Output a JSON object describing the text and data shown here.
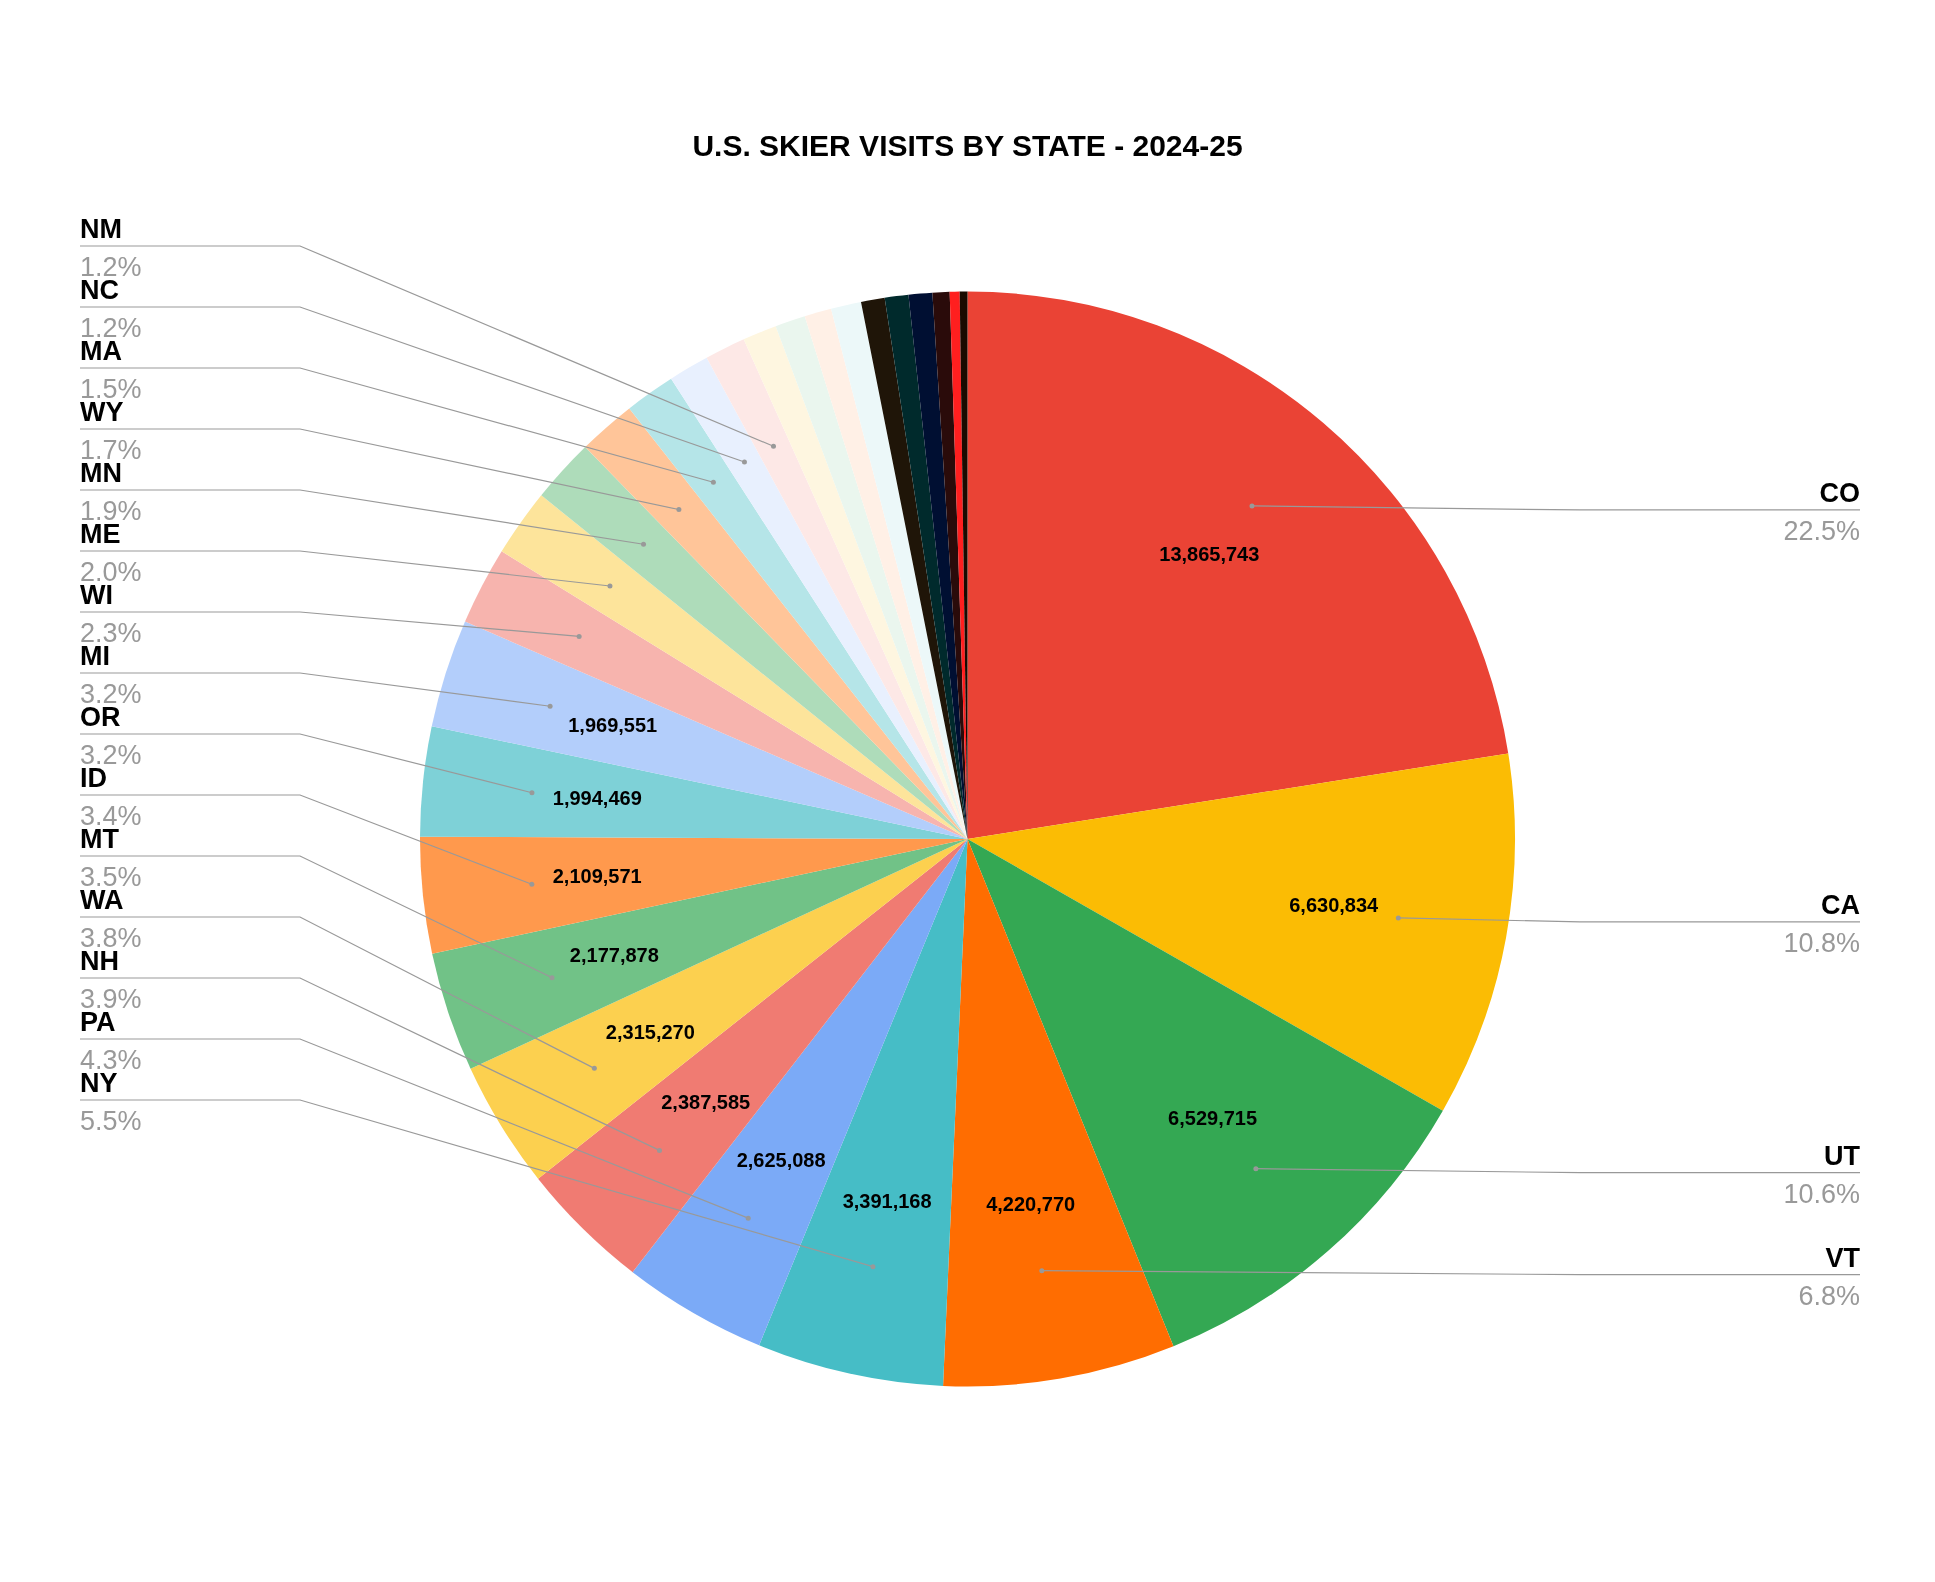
{
  "chart_data": {
    "type": "pie",
    "title": "U.S. SKIER VISITS BY STATE - 2024-25",
    "categories": [
      "CO",
      "CA",
      "UT",
      "VT",
      "NY",
      "PA",
      "NH",
      "WA",
      "MT",
      "ID",
      "OR",
      "MI",
      "WI",
      "ME",
      "MN",
      "WY",
      "MA",
      "NC",
      "NM",
      null,
      null,
      null,
      null,
      null,
      null,
      null,
      null,
      null,
      null
    ],
    "values": [
      13865743,
      6630834,
      6529715,
      4220770,
      3391168,
      2625088,
      2387585,
      2315270,
      2177878,
      2109571,
      1994469,
      1969551,
      1420000,
      1230000,
      1170000,
      1050000,
      920000,
      740000,
      740000,
      620000,
      550000,
      490000,
      550000,
      430000,
      430000,
      430000,
      310000,
      180000,
      140000
    ],
    "colors": [
      "#ea4335",
      "#fbbc04",
      "#34a853",
      "#ff6d01",
      "#46bdc6",
      "#7baaf7",
      "#f07b72",
      "#fcd04f",
      "#71c287",
      "#ff994d",
      "#7ed1d7",
      "#b3cefb",
      "#f7b4ae",
      "#fde49b",
      "#aedcba",
      "#ffc599",
      "#b5e5e8",
      "#e8f0fe",
      "#fde8e6",
      "#fef6e0",
      "#eaf6ee",
      "#fff0e6",
      "#ecf8f9",
      "#1f1508",
      "#002a2c",
      "#000f32",
      "#2a0b0a",
      "#ff1f1f",
      "#1a0a00"
    ],
    "value_labels": [
      "13,865,743",
      "6,630,834",
      "6,529,715",
      "4,220,770",
      "3,391,168",
      "2,625,088",
      "2,387,585",
      "2,315,270",
      "2,177,878",
      "2,109,571",
      "1,994,469",
      "1,969,551",
      null,
      null,
      null,
      null,
      null,
      null,
      null,
      null,
      null,
      null,
      null,
      null,
      null,
      null,
      null,
      null,
      null
    ],
    "annotations": [
      {
        "text": "22.5%",
        "x": "CO"
      },
      {
        "text": "10.8%",
        "x": "CA"
      },
      {
        "text": "10.6%",
        "x": "UT"
      },
      {
        "text": "6.8%",
        "x": "VT"
      },
      {
        "text": "5.5%",
        "x": "NY"
      },
      {
        "text": "4.3%",
        "x": "PA"
      },
      {
        "text": "3.9%",
        "x": "NH"
      },
      {
        "text": "3.8%",
        "x": "WA"
      },
      {
        "text": "3.5%",
        "x": "MT"
      },
      {
        "text": "3.4%",
        "x": "ID"
      },
      {
        "text": "3.2%",
        "x": "OR"
      },
      {
        "text": "3.2%",
        "x": "MI"
      },
      {
        "text": "2.3%",
        "x": "WI"
      },
      {
        "text": "2.0%",
        "x": "ME"
      },
      {
        "text": "1.9%",
        "x": "MN"
      },
      {
        "text": "1.7%",
        "x": "WY"
      },
      {
        "text": "1.5%",
        "x": "MA"
      },
      {
        "text": "1.2%",
        "x": "NC"
      },
      {
        "text": "1.2%",
        "x": "NM"
      }
    ],
    "legend": false
  }
}
